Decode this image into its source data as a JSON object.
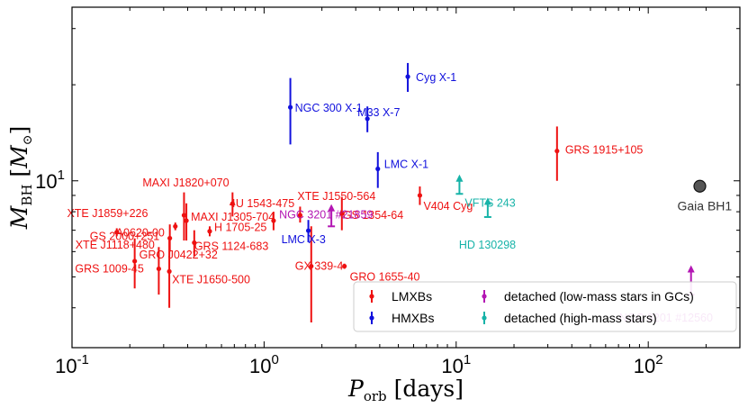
{
  "chart_data": {
    "type": "scatter",
    "x_scale": "log",
    "y_scale": "log",
    "xlim": [
      0.1,
      300
    ],
    "ylim": [
      3.0,
      35
    ],
    "x_ticks": [
      {
        "value": 0.1,
        "base": "10",
        "exp": "-1"
      },
      {
        "value": 1,
        "base": "10",
        "exp": "0"
      },
      {
        "value": 10,
        "base": "10",
        "exp": "1"
      },
      {
        "value": 100,
        "base": "10",
        "exp": "2"
      }
    ],
    "y_ticks": [
      {
        "value": 10,
        "base": "10",
        "exp": "1"
      }
    ],
    "xlabel": {
      "main": "P",
      "sub": "orb",
      "unit": "[days]"
    },
    "ylabel": {
      "main": "M",
      "sub": "BH",
      "unit_main": "M",
      "unit_sub": "⊙"
    },
    "grid": false,
    "colors": {
      "LMXBs": "#ee1111",
      "HMXBs": "#1111dd",
      "gc": "#b316b3",
      "hm": "#17b3a8",
      "gaia": "#333333"
    },
    "legend": {
      "placement": "bottom-right",
      "entries": [
        {
          "label": "LMXBs",
          "color_key": "LMXBs"
        },
        {
          "label": "HMXBs",
          "color_key": "HMXBs"
        },
        {
          "label": "detached (low-mass stars in GCs)",
          "color_key": "gc"
        },
        {
          "label": "detached (high-mass stars)",
          "color_key": "hm"
        }
      ]
    },
    "series": [
      {
        "name": "LMXBs",
        "color_key": "LMXBs",
        "points": [
          {
            "label": "GRS 1915+105",
            "x": 33.5,
            "y": 12.4,
            "ylo": 10.0,
            "yhi": 14.8
          },
          {
            "label": "V404 Cyg",
            "x": 6.47,
            "y": 9.0,
            "ylo": 8.4,
            "yhi": 9.6
          },
          {
            "label": "MAXI J1820+070",
            "x": 0.685,
            "y": 8.48,
            "ylo": 7.73,
            "yhi": 9.2
          },
          {
            "label": "XTE J1550-564",
            "x": 1.54,
            "y": 7.8,
            "ylo": 7.4,
            "yhi": 8.3
          },
          {
            "label": "GS 1354-64",
            "x": 2.54,
            "y": 7.9,
            "ylo": 7.0,
            "yhi": 8.9
          },
          {
            "label": "A0620-00",
            "x": 0.323,
            "y": 6.61,
            "ylo": 6.0,
            "yhi": 7.3
          },
          {
            "label": "XTE J1859+226",
            "x": 0.383,
            "y": 7.8,
            "ylo": 6.5,
            "yhi": 9.2
          },
          {
            "label": "MAXI J1305-704",
            "x": 0.394,
            "y": 7.5,
            "ylo": 6.5,
            "yhi": 8.5
          },
          {
            "label": "GRS 1124-683",
            "x": 0.433,
            "y": 6.4,
            "ylo": 5.8,
            "yhi": 7.0
          },
          {
            "label": "4U 1543-475",
            "x": 1.12,
            "y": 7.5,
            "ylo": 7.0,
            "yhi": 8.0
          },
          {
            "label": "GS 2000+251",
            "x": 0.345,
            "y": 7.2,
            "ylo": 7.0,
            "yhi": 7.4
          },
          {
            "label": "H 1705-25",
            "x": 0.521,
            "y": 6.95,
            "ylo": 6.7,
            "yhi": 7.2
          },
          {
            "label": "XTE J1118+480",
            "x": 0.171,
            "y": 6.9,
            "ylo": 6.7,
            "yhi": 7.1
          },
          {
            "label": "XTE J1650-500",
            "x": 0.321,
            "y": 5.2,
            "ylo": 4.0,
            "yhi": 6.6
          },
          {
            "label": "GX 339-4",
            "x": 1.76,
            "y": 5.4,
            "ylo": 3.6,
            "yhi": 7.2
          },
          {
            "label": "GRO 1655-40",
            "x": 2.62,
            "y": 5.4,
            "ylo": 5.3,
            "yhi": 5.5
          },
          {
            "label": "GRO J0422+32",
            "x": 0.212,
            "y": 5.6,
            "ylo": 4.6,
            "yhi": 6.6
          },
          {
            "label": "GRS 1009-45",
            "x": 0.283,
            "y": 5.3,
            "ylo": 4.4,
            "yhi": 6.2
          }
        ]
      },
      {
        "name": "HMXBs",
        "color_key": "HMXBs",
        "points": [
          {
            "label": "Cyg X-1",
            "x": 5.6,
            "y": 21.2,
            "ylo": 19.0,
            "yhi": 23.4
          },
          {
            "label": "NGC 300 X-1",
            "x": 1.37,
            "y": 17.0,
            "ylo": 13.0,
            "yhi": 21.0
          },
          {
            "label": "M33 X-7",
            "x": 3.45,
            "y": 15.65,
            "ylo": 14.2,
            "yhi": 17.1
          },
          {
            "label": "LMC X-1",
            "x": 3.91,
            "y": 10.9,
            "ylo": 9.5,
            "yhi": 12.3
          },
          {
            "label": "LMC X-3",
            "x": 1.7,
            "y": 6.98,
            "ylo": 6.42,
            "yhi": 7.54
          }
        ]
      },
      {
        "name": "detached (low-mass stars in GCs)",
        "color_key": "gc",
        "points": [
          {
            "label": "NGC 3201 #21859",
            "x": 2.24,
            "y": 7.7,
            "ylo": 7.2,
            "yhi": 8.4,
            "lower_limit": true
          },
          {
            "label": "NGC 3201 #12560",
            "x": 167,
            "y": 4.4,
            "ylo": 4.4,
            "yhi": 5.4,
            "lower_limit": true
          }
        ]
      },
      {
        "name": "detached (high-mass stars)",
        "color_key": "hm",
        "points": [
          {
            "label": "VFTS 243",
            "x": 10.4,
            "y": 9.1,
            "ylo": 9.1,
            "yhi": 10.4,
            "lower_limit": true
          },
          {
            "label": "HD 130298",
            "x": 14.6,
            "y": 7.7,
            "ylo": 7.7,
            "yhi": 8.8,
            "lower_limit": true
          }
        ]
      },
      {
        "name": "Gaia BH1",
        "color_key": "gaia",
        "points": [
          {
            "label": "Gaia BH1",
            "x": 185.6,
            "y": 9.62,
            "ylo": 9.44,
            "yhi": 9.8
          }
        ]
      }
    ]
  }
}
